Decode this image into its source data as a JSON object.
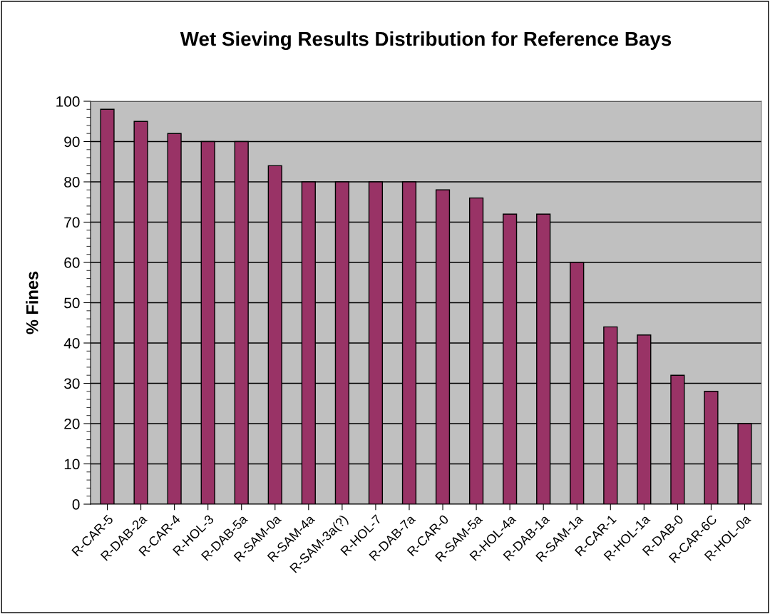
{
  "chart_data": {
    "type": "bar",
    "title": "Wet Sieving Results Distribution for Reference Bays",
    "ylabel": "% Fines",
    "categories": [
      "R-CAR-5",
      "R-DAB-2a",
      "R-CAR-4",
      "R-HOL-3",
      "R-DAB-5a",
      "R-SAM-0a",
      "R-SAM-4a",
      "R-SAM-3a(?)",
      "R-HOL-7",
      "R-DAB-7a",
      "R-CAR-0",
      "R-SAM-5a",
      "R-HOL-4a",
      "R-DAB-1a",
      "R-SAM-1a",
      "R-CAR-1",
      "R-HOL-1a",
      "R-DAB-0",
      "R-CAR-6C",
      "R-HOL-0a"
    ],
    "values": [
      98,
      95,
      92,
      90,
      90,
      84,
      80,
      80,
      80,
      80,
      78,
      76,
      72,
      72,
      60,
      44,
      42,
      32,
      28,
      20
    ],
    "color": "#993366",
    "ylim": [
      0,
      100
    ],
    "yticks": [
      0,
      10,
      20,
      30,
      40,
      50,
      60,
      70,
      80,
      90,
      100
    ],
    "grid": "y",
    "legend": false
  }
}
